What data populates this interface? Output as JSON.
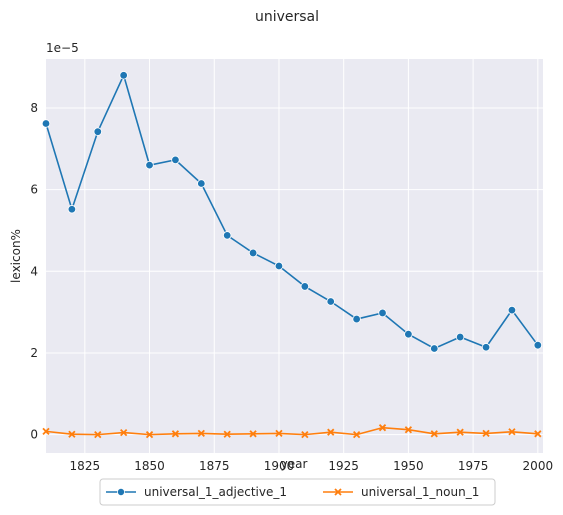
{
  "chart_data": {
    "type": "line",
    "title": "universal",
    "xlabel": "year",
    "ylabel": "lexicon%",
    "y_scale_note": "1e−5",
    "xlim": [
      1810,
      2002
    ],
    "ylim": [
      -0.45,
      9.2
    ],
    "x_ticks": [
      1825,
      1850,
      1875,
      1900,
      1925,
      1950,
      1975,
      2000
    ],
    "y_ticks": [
      0,
      2,
      4,
      6,
      8
    ],
    "grid": true,
    "legend_position": "bottom-center",
    "x": [
      1810,
      1820,
      1830,
      1840,
      1850,
      1860,
      1870,
      1880,
      1890,
      1900,
      1910,
      1920,
      1930,
      1940,
      1950,
      1960,
      1970,
      1980,
      1990,
      2000
    ],
    "series": [
      {
        "name": "universal_1_adjective_1",
        "color": "#1f77b4",
        "marker": "circle",
        "values": [
          7.62,
          5.52,
          7.42,
          8.8,
          6.6,
          6.73,
          6.15,
          4.88,
          4.45,
          4.13,
          3.63,
          3.26,
          2.83,
          2.98,
          2.46,
          2.11,
          2.39,
          2.14,
          3.05,
          2.19
        ]
      },
      {
        "name": "universal_1_noun_1",
        "color": "#ff7f0e",
        "marker": "x",
        "values": [
          0.08,
          0.01,
          0.0,
          0.05,
          0.0,
          0.02,
          0.03,
          0.01,
          0.02,
          0.03,
          0.0,
          0.06,
          0.0,
          0.17,
          0.12,
          0.02,
          0.06,
          0.03,
          0.07,
          0.02
        ]
      }
    ]
  }
}
